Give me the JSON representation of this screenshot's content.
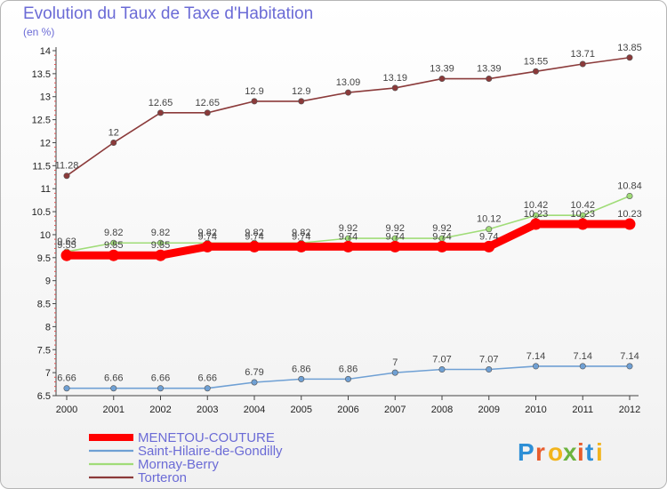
{
  "chart_data": {
    "type": "line",
    "title": "Evolution du Taux de Taxe d'Habitation",
    "subtitle": "(en %)",
    "x": [
      "2000",
      "2001",
      "2002",
      "2003",
      "2004",
      "2005",
      "2006",
      "2007",
      "2008",
      "2009",
      "2010",
      "2011",
      "2012"
    ],
    "ylim": [
      6.5,
      14
    ],
    "yticks": [
      "6.5",
      "7",
      "7.5",
      "8",
      "8.5",
      "9",
      "9.5",
      "10",
      "10.5",
      "11",
      "11.5",
      "12",
      "12.5",
      "13",
      "13.5",
      "14"
    ],
    "grid": false,
    "legend_position": "bottom-left",
    "series": [
      {
        "name": "MENETOU-COUTURE",
        "color": "#ff0000",
        "values": [
          9.55,
          9.55,
          9.55,
          9.74,
          9.74,
          9.74,
          9.74,
          9.74,
          9.74,
          9.74,
          10.23,
          10.23,
          10.23
        ],
        "labels": [
          "9.55",
          "9.55",
          "9.55",
          "9.74",
          "9.74",
          "9.74",
          "9.74",
          "9.74",
          "9.74",
          "9.74",
          "10.23",
          "10.23",
          "10.23"
        ]
      },
      {
        "name": "Saint-Hilaire-de-Gondilly",
        "color": "#6fa0d4",
        "values": [
          6.66,
          6.66,
          6.66,
          6.66,
          6.79,
          6.86,
          6.86,
          7,
          7.07,
          7.07,
          7.14,
          7.14,
          7.14
        ],
        "labels": [
          "6.66",
          "6.66",
          "6.66",
          "6.66",
          "6.79",
          "6.86",
          "6.86",
          "7",
          "7.07",
          "7.07",
          "7.14",
          "7.14",
          "7.14"
        ]
      },
      {
        "name": "Mornay-Berry",
        "color": "#a0dc78",
        "values": [
          9.63,
          9.82,
          9.82,
          9.82,
          9.82,
          9.82,
          9.92,
          9.92,
          9.92,
          10.12,
          10.42,
          10.42,
          10.84
        ],
        "labels": [
          "9.63",
          "9.82",
          "9.82",
          "9.82",
          "9.82",
          "9.82",
          "9.92",
          "9.92",
          "9.92",
          "10.12",
          "10.42",
          "10.42",
          "10.84"
        ]
      },
      {
        "name": "Torteron",
        "color": "#8b3a3a",
        "values": [
          11.28,
          12,
          12.65,
          12.65,
          12.9,
          12.9,
          13.09,
          13.19,
          13.39,
          13.39,
          13.55,
          13.71,
          13.85
        ],
        "labels": [
          "11.28",
          "12",
          "12.65",
          "12.65",
          "12.9",
          "12.9",
          "13.09",
          "13.19",
          "13.39",
          "13.39",
          "13.55",
          "13.71",
          "13.85"
        ]
      }
    ]
  },
  "logo": {
    "letters": [
      "P",
      "r",
      "o",
      "x",
      "i",
      "t",
      "i"
    ],
    "colors": [
      "#2e8fd6",
      "#e85c2c",
      "#f2b41c",
      "#6cb33f",
      "#e85c2c",
      "#2e8fd6",
      "#f2b41c"
    ]
  }
}
